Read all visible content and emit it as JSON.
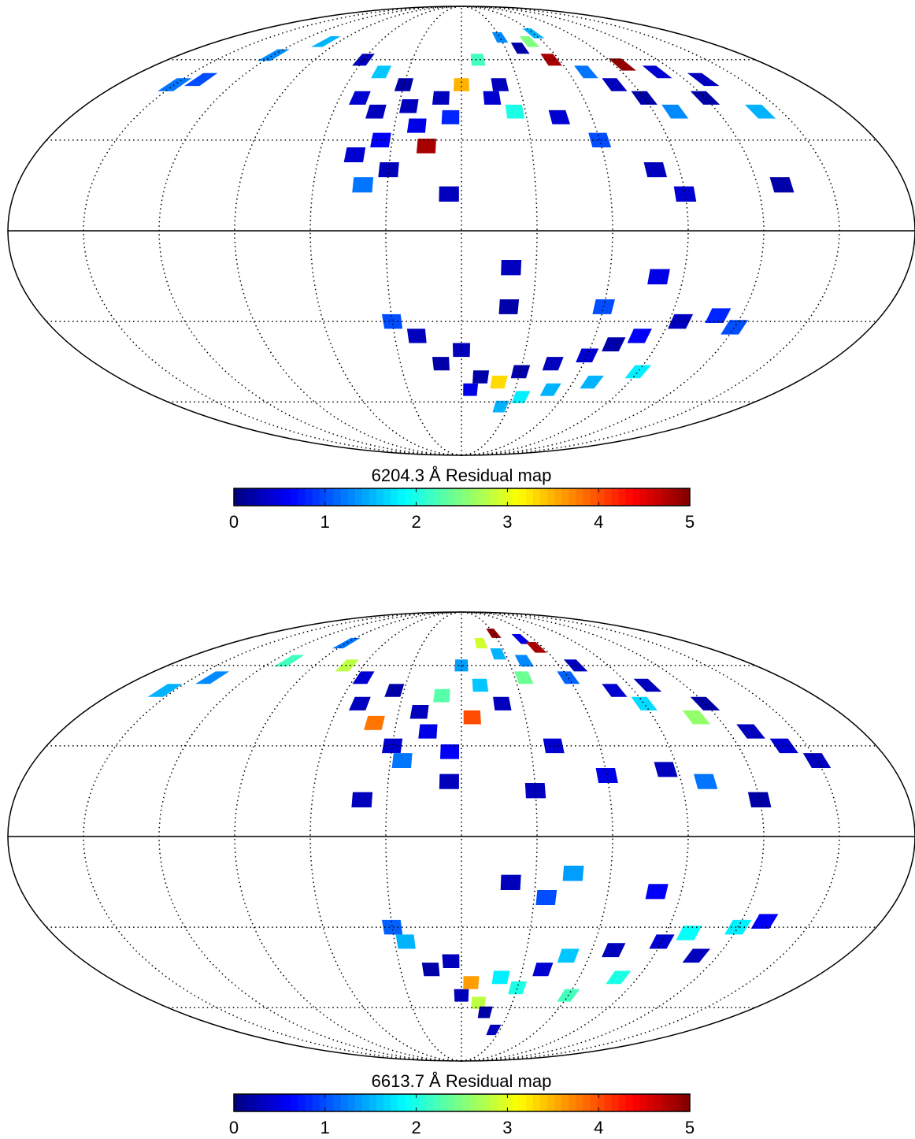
{
  "chart_data": [
    {
      "type": "map",
      "projection": "mollweide",
      "title": "6204.3 Å  Residual map",
      "colormap": "jet",
      "clim": [
        0,
        5
      ],
      "cticks": [
        0,
        1,
        2,
        3,
        4,
        5
      ],
      "meridians": [
        -150,
        -120,
        -90,
        -60,
        -30,
        0,
        30,
        60,
        90,
        120,
        150
      ],
      "parallels": [
        -60,
        -30,
        30,
        60
      ],
      "lon": [
        -150,
        -140,
        -120,
        -100,
        -60,
        -45,
        -50,
        -40,
        -30,
        -25,
        -20,
        -35,
        -45,
        -15,
        -10,
        -5,
        0,
        10,
        15,
        20,
        25,
        30,
        40,
        50,
        55,
        60,
        70,
        80,
        90,
        95,
        100,
        110,
        120,
        130,
        140,
        45,
        60,
        80,
        90,
        130,
        -40,
        -5,
        -30,
        -20,
        -10,
        0,
        5,
        10,
        20,
        25,
        30,
        35,
        45,
        50,
        60,
        70,
        80,
        95,
        110,
        120,
        90,
        70,
        20,
        20,
        -30,
        60,
        80
      ],
      "lat": [
        50,
        52,
        62,
        68,
        60,
        55,
        45,
        40,
        50,
        42,
        35,
        30,
        25,
        28,
        45,
        38,
        50,
        60,
        45,
        50,
        40,
        70,
        65,
        68,
        60,
        72,
        55,
        50,
        45,
        58,
        40,
        55,
        45,
        52,
        40,
        38,
        30,
        20,
        12,
        15,
        15,
        12,
        20,
        -35,
        -45,
        -40,
        -55,
        -50,
        -52,
        -62,
        -48,
        -58,
        -45,
        -55,
        -42,
        -38,
        -35,
        -30,
        -28,
        -32,
        -48,
        -52,
        -12,
        -25,
        -30,
        -25,
        -15
      ],
      "values": [
        1.2,
        1.0,
        1.3,
        1.5,
        0.3,
        1.6,
        0.4,
        0.3,
        0.2,
        0.3,
        0.5,
        0.6,
        0.4,
        4.8,
        0.3,
        0.8,
        3.5,
        2.2,
        0.4,
        0.3,
        2.0,
        1.3,
        0.2,
        2.5,
        4.8,
        1.5,
        1.2,
        0.3,
        0.2,
        4.9,
        1.3,
        0.4,
        0.2,
        0.3,
        1.5,
        0.4,
        1.0,
        0.3,
        0.4,
        0.2,
        1.2,
        0.3,
        0.3,
        0.3,
        0.2,
        0.3,
        0.5,
        0.2,
        3.3,
        1.5,
        0.2,
        1.8,
        0.3,
        1.5,
        0.4,
        0.2,
        0.6,
        0.3,
        0.8,
        1.0,
        1.8,
        1.5,
        0.3,
        0.2,
        1.0,
        1.0,
        0.5
      ]
    },
    {
      "type": "map",
      "projection": "mollweide",
      "title": "6613.7 Å  Residual map",
      "colormap": "jet",
      "clim": [
        0,
        5
      ],
      "cticks": [
        0,
        1,
        2,
        3,
        4,
        5
      ],
      "meridians": [
        -150,
        -120,
        -90,
        -60,
        -30,
        0,
        30,
        60,
        90,
        120,
        150
      ],
      "parallels": [
        -60,
        -30,
        30,
        60
      ],
      "lon": [
        -155,
        -140,
        -110,
        -90,
        -70,
        -55,
        -50,
        -40,
        -35,
        -30,
        -25,
        -20,
        -15,
        -10,
        -5,
        0,
        5,
        10,
        15,
        20,
        25,
        30,
        35,
        40,
        50,
        55,
        60,
        70,
        80,
        90,
        100,
        110,
        120,
        130,
        140,
        150,
        40,
        60,
        85,
        100,
        120,
        -40,
        -5,
        30,
        -25,
        -15,
        -5,
        0,
        5,
        10,
        15,
        20,
        25,
        30,
        40,
        50,
        60,
        70,
        80,
        90,
        100,
        110,
        120,
        130,
        20,
        35,
        45,
        80,
        -30
      ],
      "lat": [
        50,
        55,
        62,
        70,
        60,
        55,
        45,
        38,
        50,
        30,
        25,
        42,
        35,
        48,
        28,
        60,
        40,
        52,
        70,
        45,
        65,
        75,
        55,
        62,
        72,
        68,
        55,
        60,
        50,
        45,
        52,
        40,
        45,
        35,
        30,
        25,
        30,
        20,
        22,
        18,
        12,
        12,
        18,
        15,
        -35,
        -45,
        -42,
        -55,
        -50,
        -58,
        -62,
        -48,
        -70,
        -52,
        -45,
        -40,
        -55,
        -38,
        -48,
        -35,
        -32,
        -40,
        -30,
        -28,
        -15,
        -20,
        -12,
        -18,
        -30
      ],
      "values": [
        1.5,
        1.3,
        2.2,
        1.2,
        2.8,
        0.4,
        0.3,
        3.8,
        0.2,
        0.4,
        1.2,
        0.3,
        0.5,
        2.3,
        0.6,
        1.4,
        4.0,
        1.6,
        2.9,
        0.3,
        1.5,
        4.9,
        2.4,
        1.3,
        0.5,
        4.8,
        1.1,
        0.3,
        0.4,
        1.7,
        0.3,
        2.6,
        0.2,
        0.3,
        0.4,
        0.3,
        0.4,
        0.5,
        0.3,
        1.2,
        0.2,
        0.3,
        0.3,
        0.3,
        1.5,
        0.2,
        0.3,
        0.3,
        3.6,
        2.8,
        0.2,
        1.8,
        0.3,
        2.0,
        0.4,
        1.6,
        2.2,
        0.3,
        2.0,
        0.4,
        1.9,
        0.3,
        1.8,
        0.6,
        0.3,
        1.0,
        1.4,
        0.6,
        1.1
      ]
    }
  ]
}
